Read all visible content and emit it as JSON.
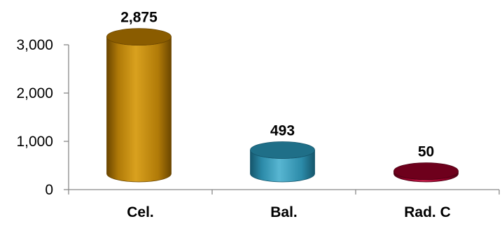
{
  "chart_data": {
    "type": "bar",
    "categories": [
      "Cel.",
      "Bal.",
      "Rad. C"
    ],
    "values": [
      2875,
      493,
      50
    ],
    "data_labels": [
      "2,875",
      "493",
      "50"
    ],
    "y_ticks": [
      {
        "value": 0,
        "label": "0"
      },
      {
        "value": 1000,
        "label": "1,000"
      },
      {
        "value": 2000,
        "label": "2,000"
      },
      {
        "value": 3000,
        "label": "3,000"
      }
    ],
    "ylim": [
      0,
      3000
    ],
    "grid": false,
    "title": "",
    "xlabel": "",
    "ylabel": "",
    "colors": {
      "Cel.": {
        "front": "#b07a08",
        "dark": "#6b4600",
        "light": "#d9a11e",
        "top": "#8a5c00"
      },
      "Bal.": {
        "front": "#2b8aa8",
        "dark": "#15566c",
        "light": "#58b6d2",
        "top": "#1f6f88"
      },
      "Rad. C": {
        "front": "#8c0026",
        "dark": "#4d0013",
        "light": "#c21a48",
        "top": "#6e001c"
      }
    }
  }
}
